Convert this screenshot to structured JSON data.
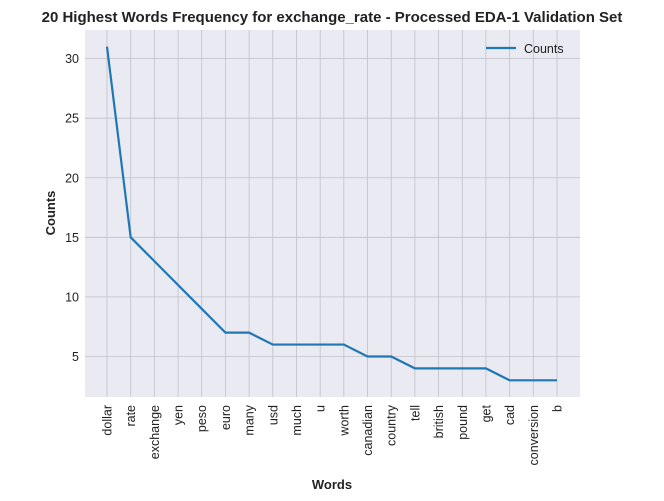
{
  "chart_data": {
    "type": "line",
    "title": "20 Highest Words Frequency for exchange_rate - Processed EDA-1 Validation Set",
    "xlabel": "Words",
    "ylabel": "Counts",
    "categories": [
      "dollar",
      "rate",
      "exchange",
      "yen",
      "peso",
      "euro",
      "many",
      "usd",
      "much",
      "u",
      "worth",
      "canadian",
      "country",
      "tell",
      "british",
      "pound",
      "get",
      "cad",
      "conversion",
      "b"
    ],
    "series": [
      {
        "name": "Counts",
        "values": [
          31,
          15,
          13,
          11,
          9,
          7,
          7,
          6,
          6,
          6,
          6,
          5,
          5,
          4,
          4,
          4,
          4,
          3,
          3,
          3
        ]
      }
    ],
    "ylim": [
      1.6,
      32.4
    ],
    "yticks": [
      5,
      10,
      15,
      20,
      25,
      30
    ],
    "grid": true,
    "legend_position": "top-right",
    "colors": {
      "line": "#1f77b4",
      "background": "#eaeaf2",
      "grid": "#c0c0c8"
    }
  }
}
